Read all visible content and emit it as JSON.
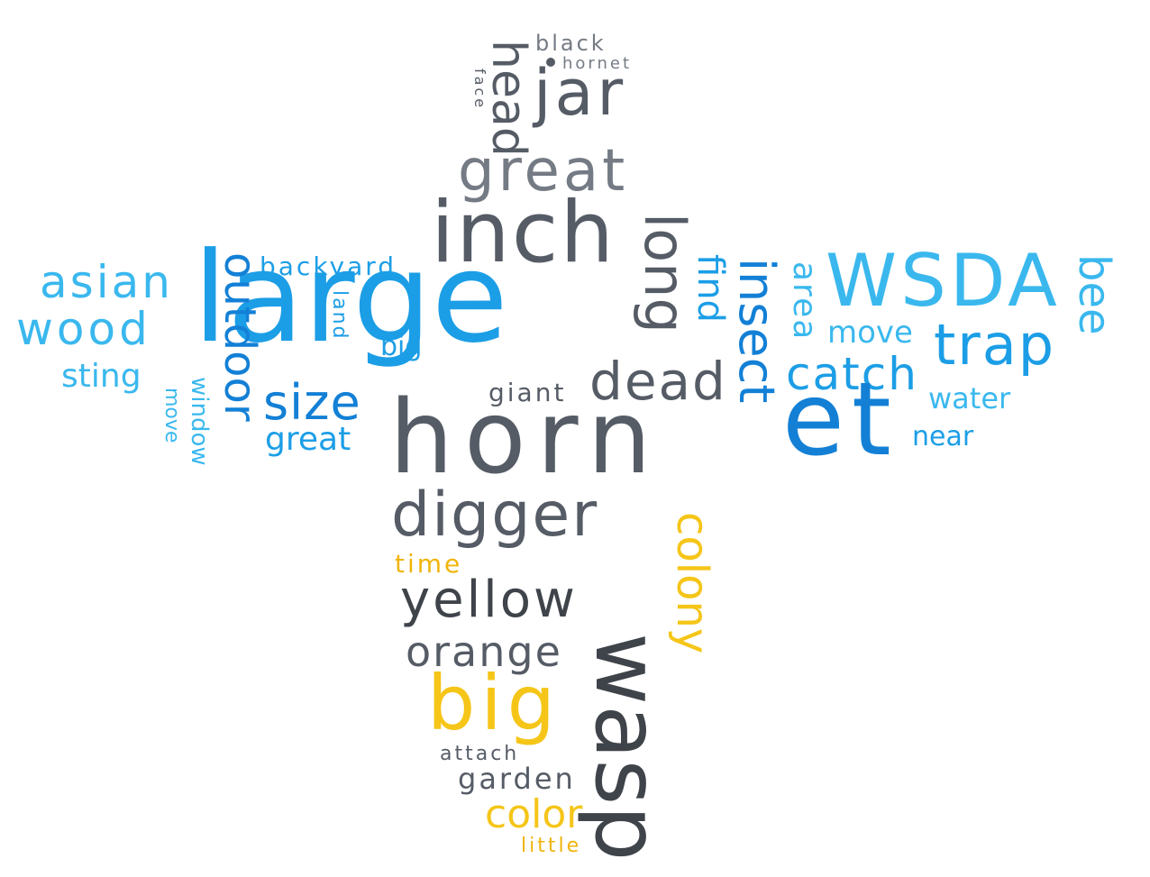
{
  "colors": {
    "blue_dark": "#1380d6",
    "blue": "#1c9ee6",
    "blue_light": "#3ab8ee",
    "grey_dark": "#3f434a",
    "grey": "#565c66",
    "grey_light": "#747b84",
    "gold": "#f0b40a",
    "gold_light": "#f5c518"
  },
  "words": [
    {
      "text": "black",
      "color": "grey_light"
    },
    {
      "text": "hornet",
      "color": "grey_light"
    },
    {
      "text": "face",
      "color": "grey"
    },
    {
      "text": "head",
      "color": "grey"
    },
    {
      "text": "jar",
      "color": "grey"
    },
    {
      "text": "great",
      "color": "grey_light"
    },
    {
      "text": "inch",
      "color": "grey"
    },
    {
      "text": "long",
      "color": "grey"
    },
    {
      "text": "large",
      "color": "blue"
    },
    {
      "text": "backyard",
      "color": "blue"
    },
    {
      "text": "asian",
      "color": "blue_light"
    },
    {
      "text": "wood",
      "color": "blue_light"
    },
    {
      "text": "sting",
      "color": "blue_light"
    },
    {
      "text": "outdoor",
      "color": "blue_dark"
    },
    {
      "text": "land",
      "color": "blue"
    },
    {
      "text": "big",
      "color": "blue"
    },
    {
      "text": "size",
      "color": "blue_dark"
    },
    {
      "text": "great",
      "color": "blue"
    },
    {
      "text": "window",
      "color": "blue_light"
    },
    {
      "text": "move",
      "color": "blue_light"
    },
    {
      "text": "giant",
      "color": "grey"
    },
    {
      "text": "dead",
      "color": "grey"
    },
    {
      "text": "find",
      "color": "blue"
    },
    {
      "text": "insect",
      "color": "blue_dark"
    },
    {
      "text": "area",
      "color": "blue_light"
    },
    {
      "text": "WSDA",
      "color": "blue_light"
    },
    {
      "text": "bee",
      "color": "blue_light"
    },
    {
      "text": "move",
      "color": "blue_light"
    },
    {
      "text": "trap",
      "color": "blue"
    },
    {
      "text": "catch",
      "color": "blue"
    },
    {
      "text": "water",
      "color": "blue_light"
    },
    {
      "text": "near",
      "color": "blue"
    },
    {
      "text": "horn",
      "color": "grey"
    },
    {
      "text": "et",
      "color": "blue_dark"
    },
    {
      "text": "digger",
      "color": "grey"
    },
    {
      "text": "colony",
      "color": "gold_light"
    },
    {
      "text": "time",
      "color": "gold"
    },
    {
      "text": "yellow",
      "color": "grey_dark"
    },
    {
      "text": "wasp",
      "color": "grey_dark"
    },
    {
      "text": "orange",
      "color": "grey"
    },
    {
      "text": "big",
      "color": "gold_light"
    },
    {
      "text": "attach",
      "color": "grey"
    },
    {
      "text": "garden",
      "color": "grey"
    },
    {
      "text": "color",
      "color": "gold_light"
    },
    {
      "text": "little",
      "color": "gold"
    }
  ]
}
